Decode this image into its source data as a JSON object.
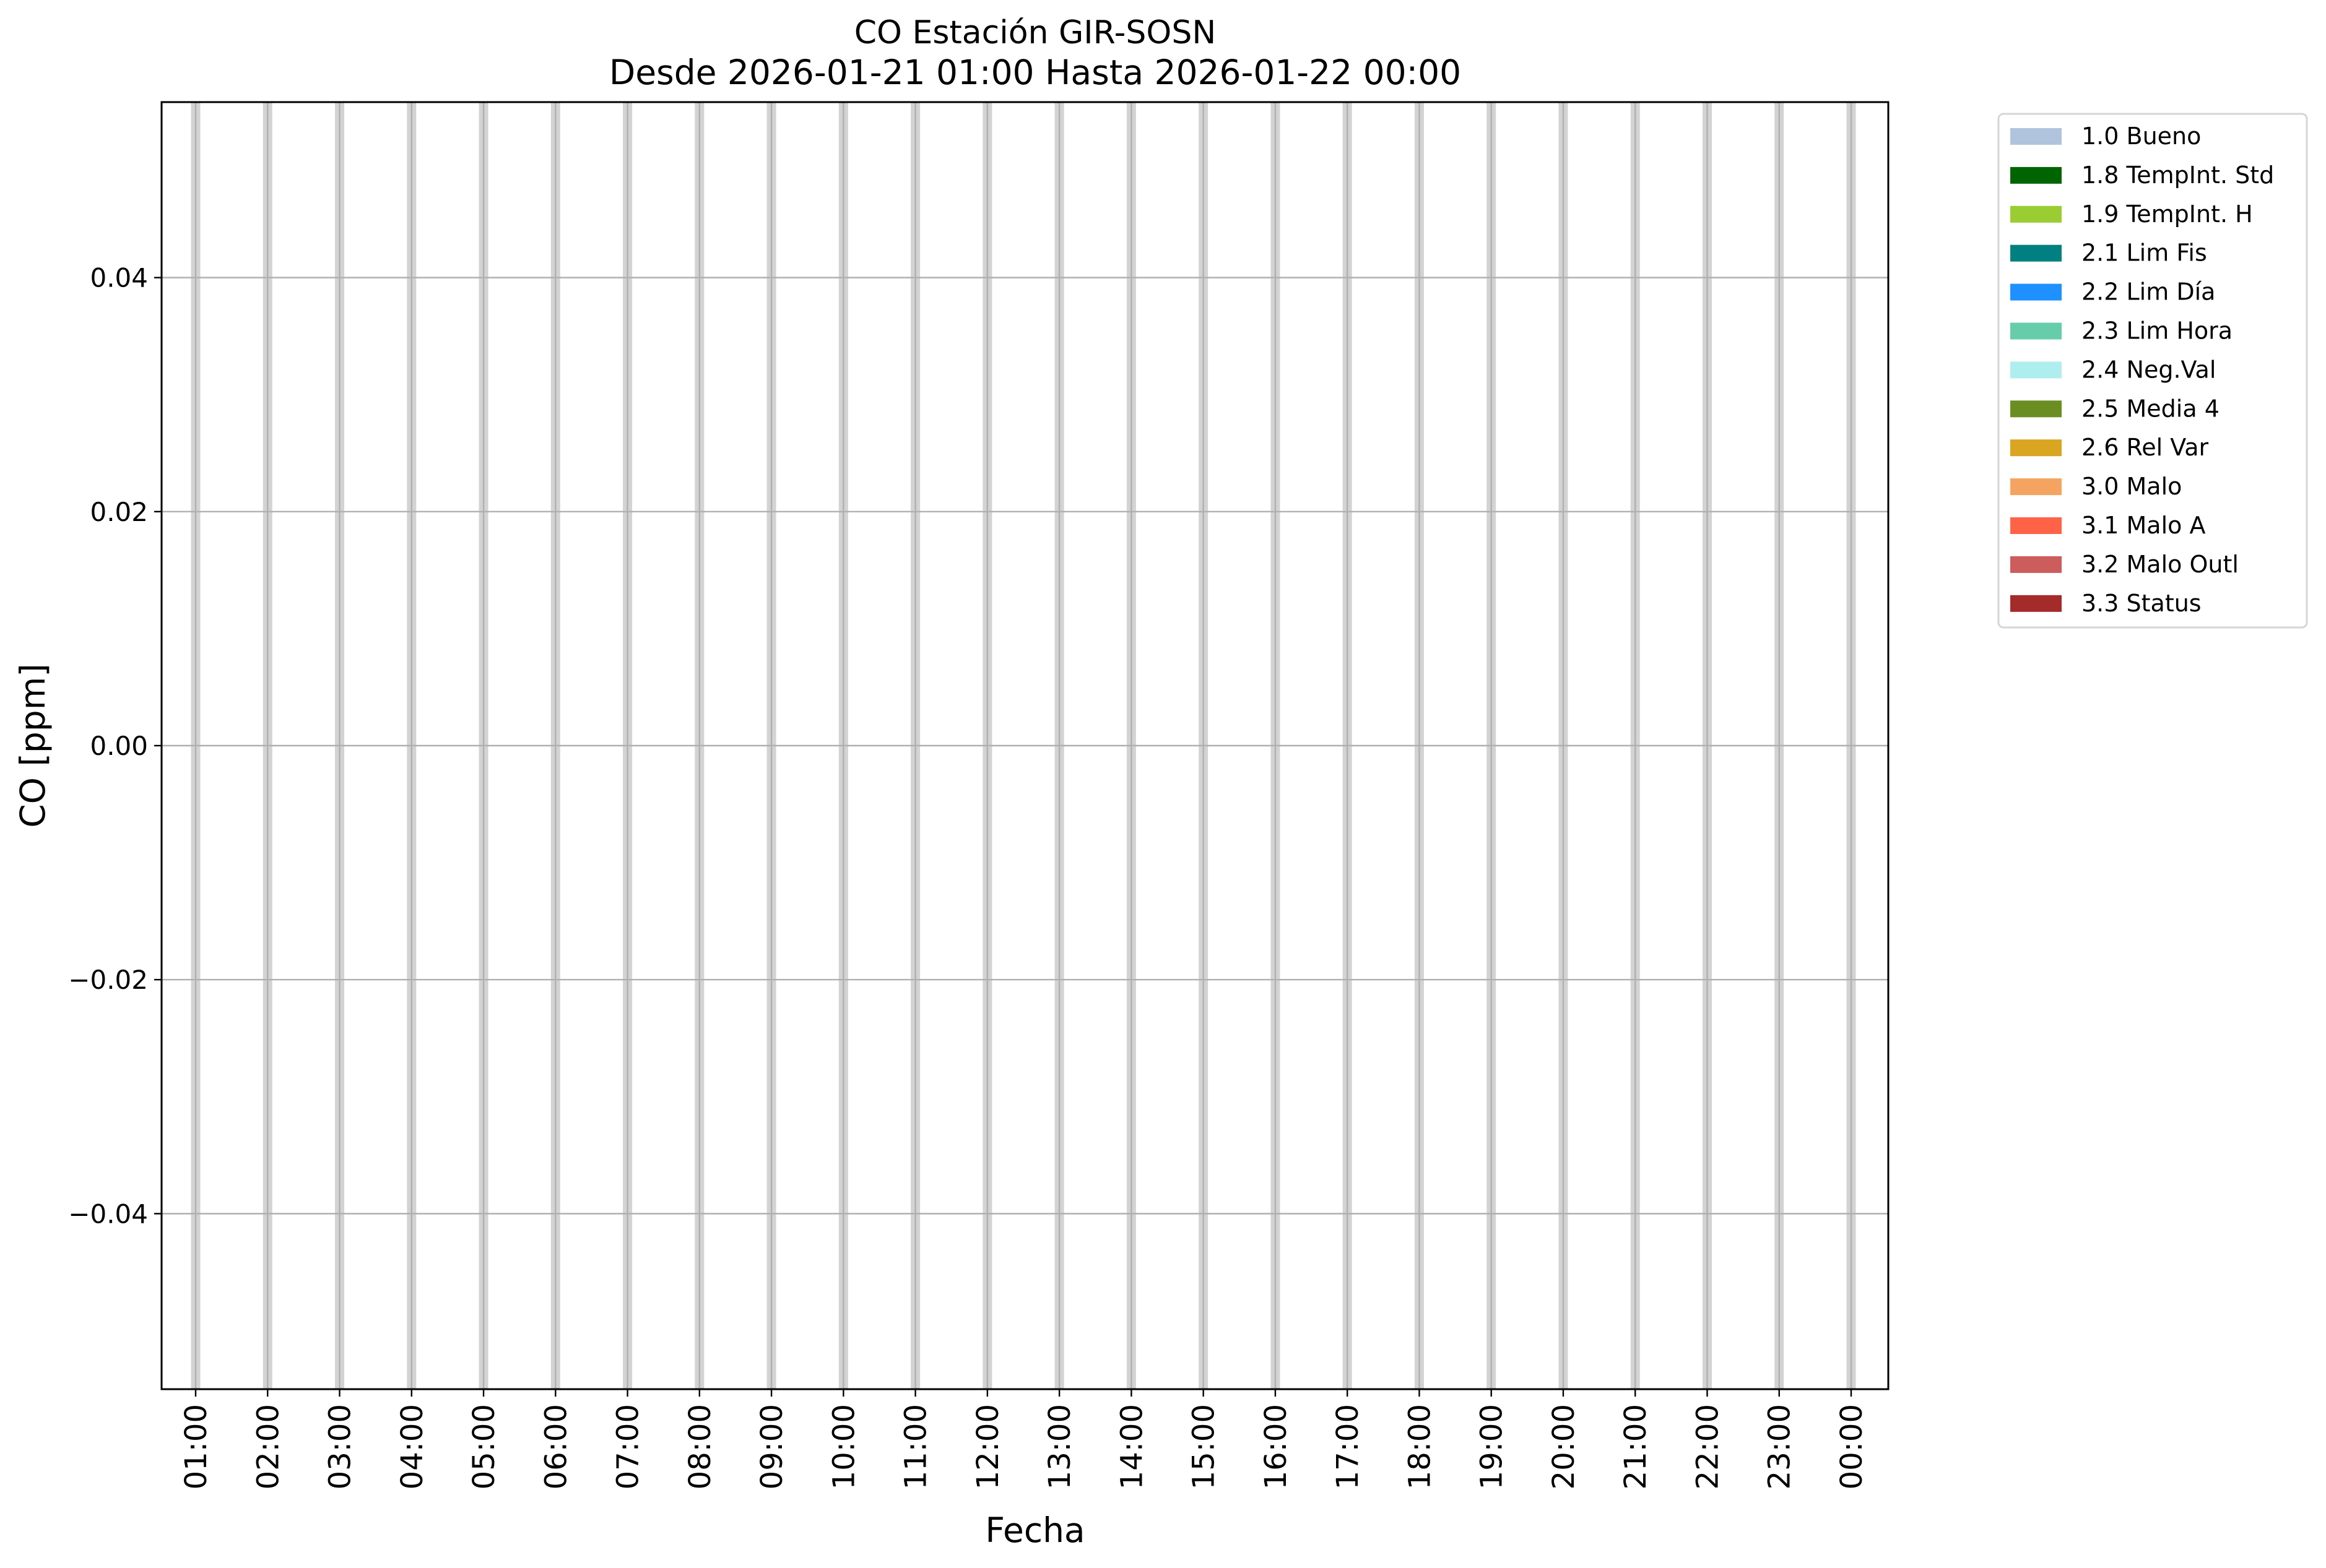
{
  "chart_data": {
    "type": "line",
    "title": "CO Estación GIR-SOSN",
    "subtitle": "Desde 2026-01-21 01:00 Hasta 2026-01-22 00:00",
    "xlabel": "Fecha",
    "ylabel": "CO [ppm]",
    "ylim": [
      -0.055,
      0.055
    ],
    "yticks": [
      -0.04,
      -0.02,
      0.0,
      0.02,
      0.04
    ],
    "ytick_labels": [
      "−0.04",
      "−0.02",
      "0.00",
      "0.02",
      "0.04"
    ],
    "xtick_labels": [
      "01:00",
      "02:00",
      "03:00",
      "04:00",
      "05:00",
      "06:00",
      "07:00",
      "08:00",
      "09:00",
      "10:00",
      "11:00",
      "12:00",
      "13:00",
      "14:00",
      "15:00",
      "16:00",
      "17:00",
      "18:00",
      "19:00",
      "20:00",
      "21:00",
      "22:00",
      "23:00",
      "00:00"
    ],
    "grid": true,
    "shaded_hours_color": "#d3d3d3",
    "series": [],
    "legend_placement": "outside-top-right",
    "legend": [
      {
        "label": "1.0 Bueno",
        "color": "#b0c4de"
      },
      {
        "label": "1.8 TempInt. Std",
        "color": "#006400"
      },
      {
        "label": "1.9 TempInt. H",
        "color": "#9acd32"
      },
      {
        "label": "2.1 Lim Fis",
        "color": "#008080"
      },
      {
        "label": "2.2 Lim Día",
        "color": "#1e90ff"
      },
      {
        "label": "2.3 Lim Hora",
        "color": "#66cdaa"
      },
      {
        "label": "2.4 Neg.Val",
        "color": "#afeeee"
      },
      {
        "label": "2.5 Media 4",
        "color": "#6b8e23"
      },
      {
        "label": "2.6 Rel Var",
        "color": "#daa520"
      },
      {
        "label": "3.0 Malo",
        "color": "#f4a460"
      },
      {
        "label": "3.1 Malo A",
        "color": "#ff6347"
      },
      {
        "label": "3.2 Malo Outl",
        "color": "#cd5c5c"
      },
      {
        "label": "3.3 Status",
        "color": "#a52a2a"
      }
    ]
  }
}
